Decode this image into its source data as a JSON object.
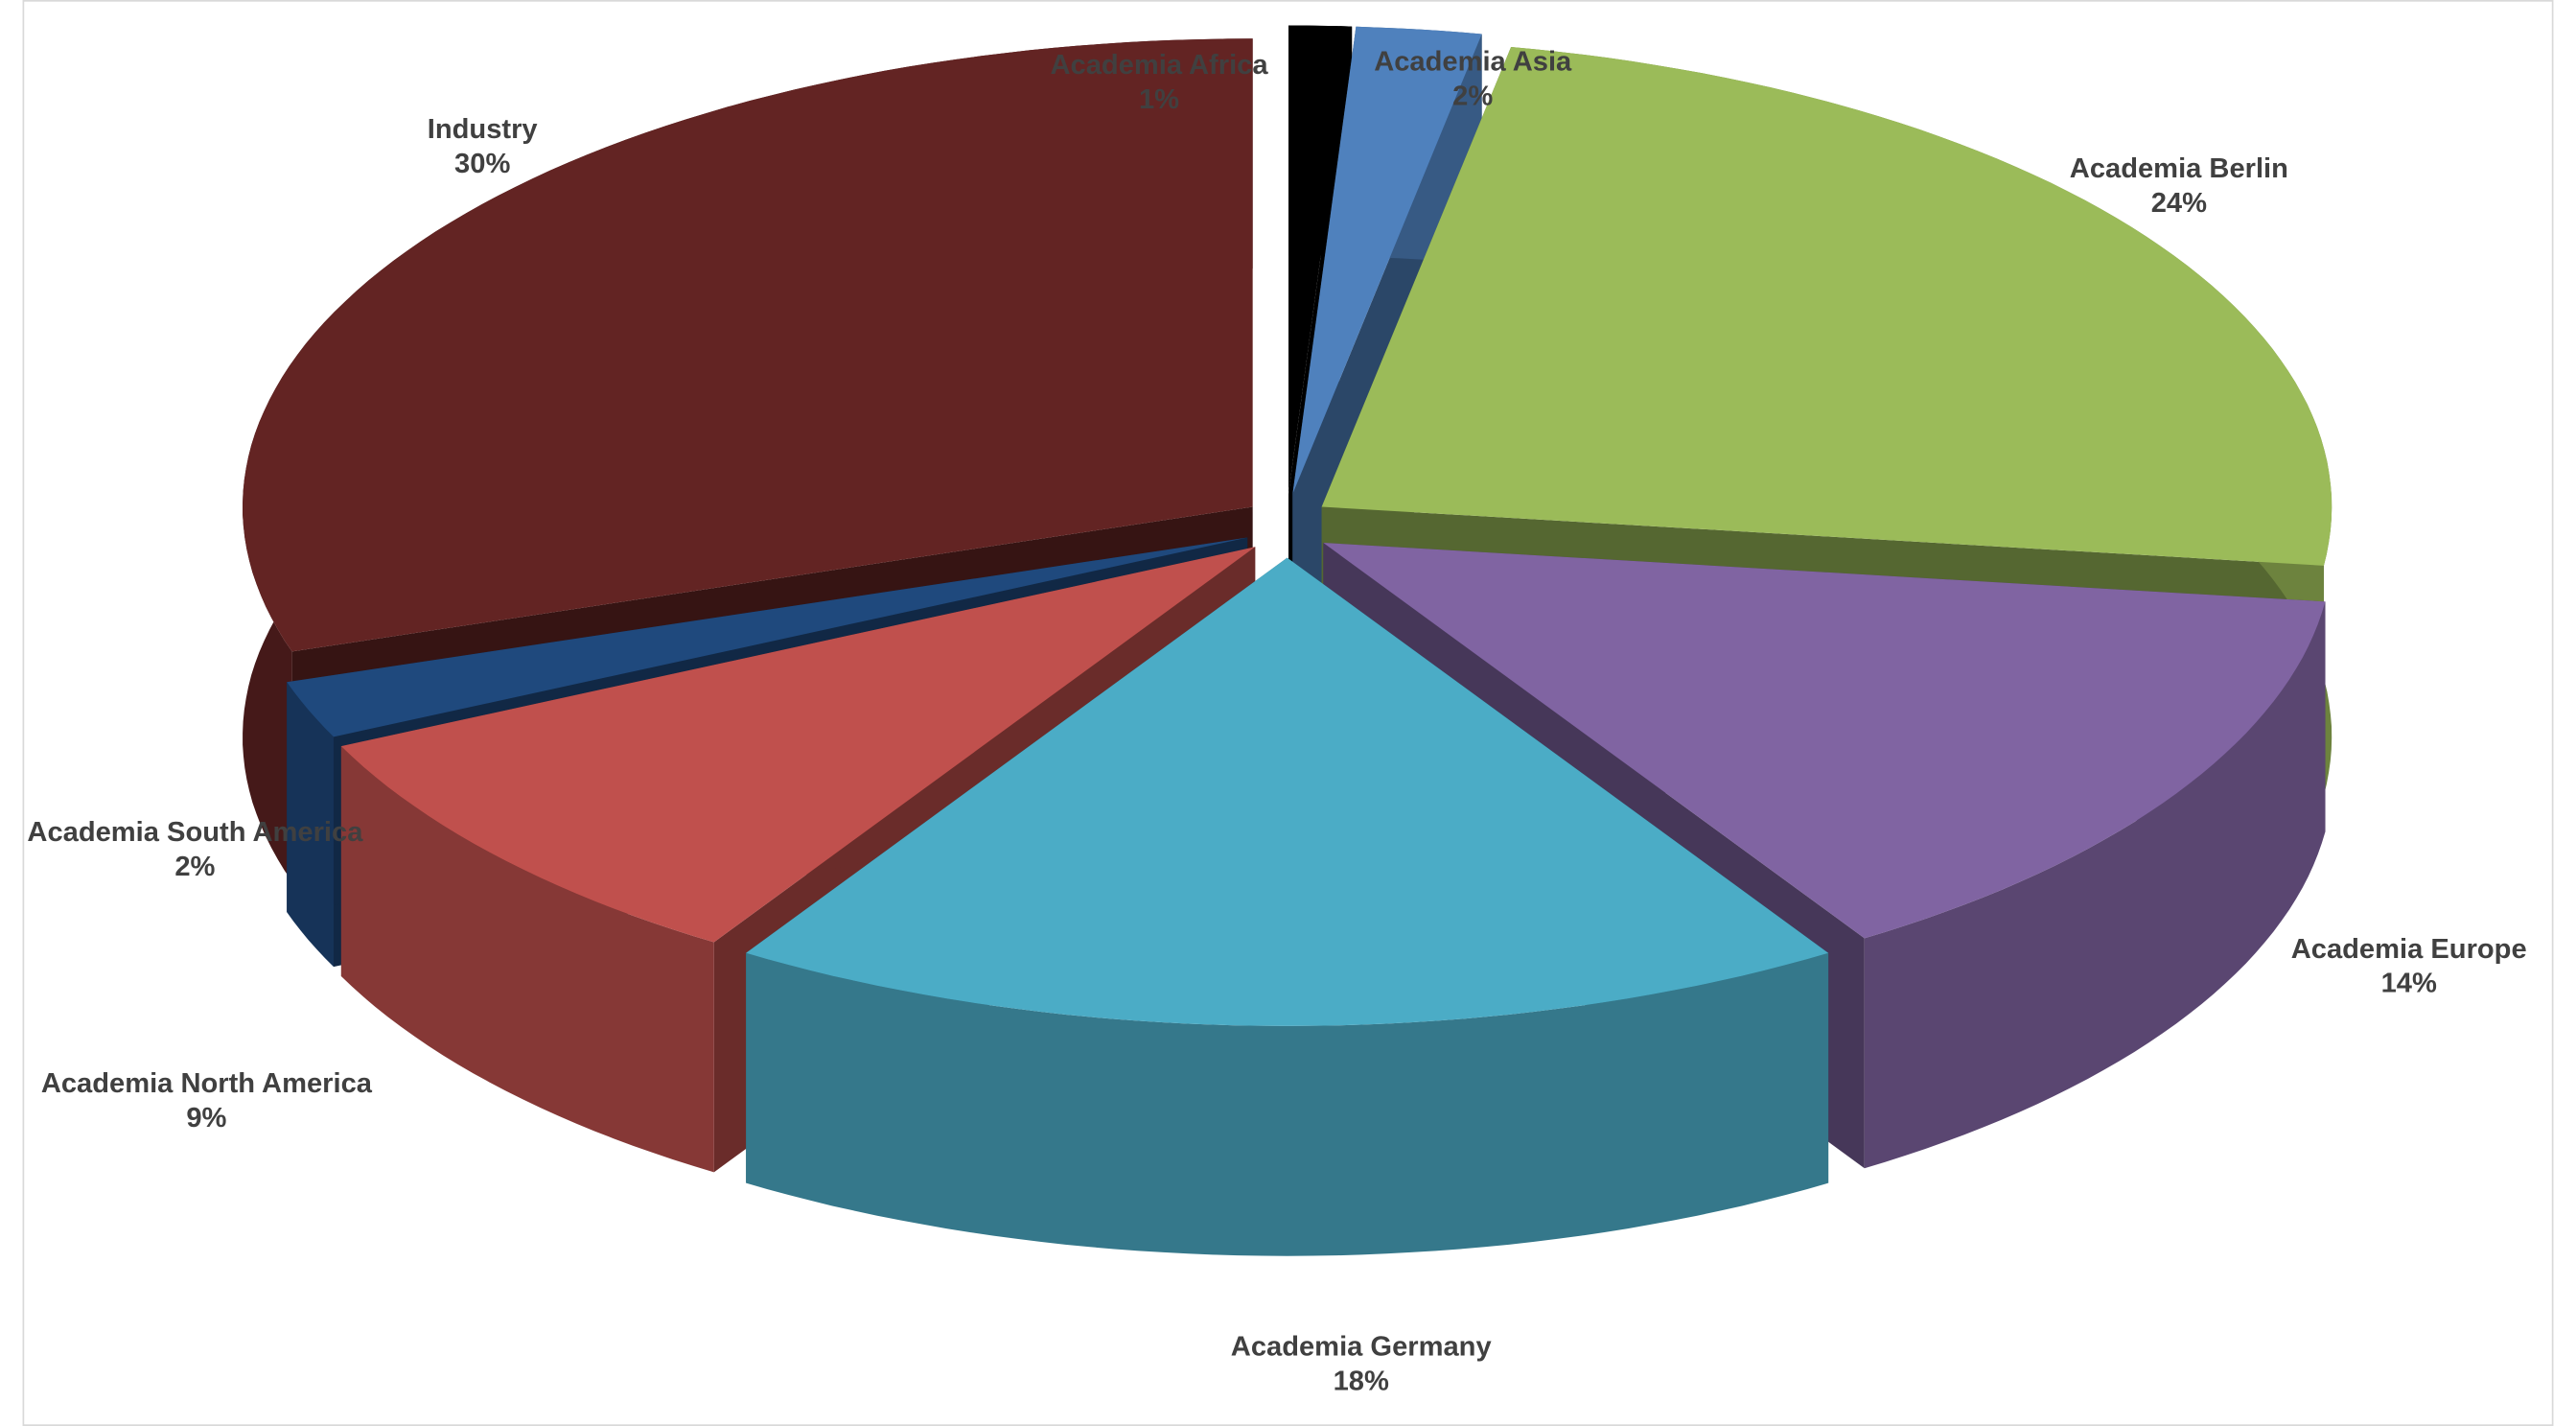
{
  "chart_data": {
    "type": "pie",
    "categories": [
      "Academia Africa",
      "Academia Asia",
      "Academia Berlin",
      "Academia Europe",
      "Academia Germany",
      "Academia North America",
      "Academia South America",
      "Industry"
    ],
    "values": [
      1,
      2,
      24,
      14,
      18,
      9,
      2,
      30
    ],
    "value_labels": [
      "1%",
      "2%",
      "24%",
      "14%",
      "18%",
      "9%",
      "2%",
      "30%"
    ],
    "colors": [
      "#000000",
      "#4f81bd",
      "#9bbb59",
      "#8064a2",
      "#4bacc6",
      "#c0504d",
      "#1f497d",
      "#632423"
    ]
  }
}
